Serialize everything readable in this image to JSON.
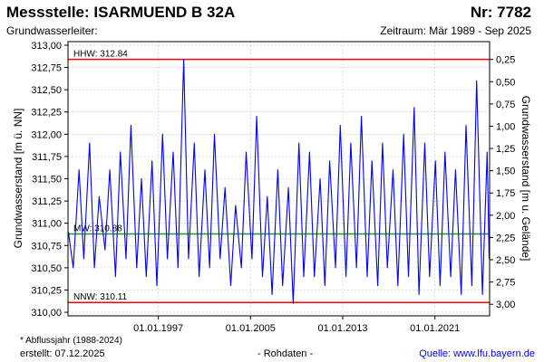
{
  "header": {
    "title": "Messstelle: ISARMUEND B 32A",
    "number": "Nr: 7782",
    "aquifer_label": "Grundwasserleiter:",
    "period": "Zeitraum: Mär 1989 - Sep 2025"
  },
  "footer": {
    "note": "* Abflussjahr (1988-2024)",
    "created": "erstellt:  07.12.2025",
    "data_type": "- Rohdaten -",
    "source": "Quelle:  www.lfu.bayern.de"
  },
  "colors": {
    "series": "#0000ff",
    "extreme_lines": "#ff0000",
    "mean_line": "#1a9e1a",
    "grid": "#c8c8c8",
    "source_text": "#0000ff"
  },
  "chart_data": {
    "type": "line",
    "ylabel": "Grundwasserstand [m ü. NN]",
    "ylabel_right": "Grundwasserstand [m u. Gelände]",
    "ylim": [
      309.96,
      313.04
    ],
    "yticks": [
      "310,00",
      "310,25",
      "310,50",
      "310,75",
      "311,00",
      "311,25",
      "311,50",
      "311,75",
      "312,00",
      "312,25",
      "312,50",
      "312,75",
      "313,00"
    ],
    "yticks_right": [
      "0,25",
      "0,50",
      "0,75",
      "1,00",
      "1,25",
      "1,50",
      "1,75",
      "2,00",
      "2,25",
      "2,50",
      "2,75",
      "3,00"
    ],
    "right_axis_zero_level": 313.09,
    "xlim": [
      "1989-03-01",
      "2025-09-30"
    ],
    "xticks": [
      {
        "date": "1997-01-01",
        "label": "01.01.1997"
      },
      {
        "date": "2005-01-01",
        "label": "01.01.2005"
      },
      {
        "date": "2013-01-01",
        "label": "01.01.2013"
      },
      {
        "date": "2021-01-01",
        "label": "01.01.2021"
      }
    ],
    "grid": true,
    "reference_lines": [
      {
        "label": "HHW: 312.84",
        "value": 312.84
      },
      {
        "label": "MW: 310.88",
        "value": 310.88
      },
      {
        "label": "NNW: 310.11",
        "value": 310.11
      }
    ],
    "series": [
      {
        "x": [
          "1989-03",
          "1989-08",
          "1990-02",
          "1990-07",
          "1991-01",
          "1991-06",
          "1991-11",
          "1992-05",
          "1992-10",
          "1993-04",
          "1993-09",
          "1994-03",
          "1994-08",
          "1995-02",
          "1995-07",
          "1995-12",
          "1996-06",
          "1996-11",
          "1997-05",
          "1997-10",
          "1998-04",
          "1998-09",
          "1999-03",
          "1999-08",
          "2000-02",
          "2000-07",
          "2001-01",
          "2001-06",
          "2001-11",
          "2002-05",
          "2002-10",
          "2003-04",
          "2003-09",
          "2004-03",
          "2004-08",
          "2005-02",
          "2005-07",
          "2006-01",
          "2006-06",
          "2006-11",
          "2007-05",
          "2007-10",
          "2008-04",
          "2008-09",
          "2009-03",
          "2009-08",
          "2010-02",
          "2010-07",
          "2011-01",
          "2011-06",
          "2011-11",
          "2012-05",
          "2012-10",
          "2013-04",
          "2013-09",
          "2014-03",
          "2014-08",
          "2015-02",
          "2015-07",
          "2016-01",
          "2016-06",
          "2016-11",
          "2017-05",
          "2017-10",
          "2018-04",
          "2018-09",
          "2019-03",
          "2019-08",
          "2020-02",
          "2020-07",
          "2021-01",
          "2021-06",
          "2021-11",
          "2022-05",
          "2022-10",
          "2023-04",
          "2023-09",
          "2024-03",
          "2024-08",
          "2025-02",
          "2025-07",
          "2025-09"
        ],
        "y": [
          310.9,
          310.5,
          311.6,
          310.6,
          311.9,
          310.5,
          311.3,
          310.7,
          311.6,
          310.4,
          311.8,
          310.6,
          312.1,
          310.5,
          311.5,
          310.4,
          311.7,
          310.3,
          312.0,
          310.6,
          311.8,
          310.5,
          312.84,
          310.6,
          311.9,
          310.4,
          311.6,
          310.5,
          312.0,
          310.6,
          311.4,
          310.3,
          311.2,
          310.5,
          311.8,
          310.6,
          312.2,
          310.4,
          311.3,
          310.2,
          311.6,
          310.3,
          311.4,
          310.1,
          311.9,
          310.4,
          311.8,
          310.4,
          311.5,
          310.3,
          311.7,
          310.5,
          312.1,
          310.4,
          311.9,
          310.5,
          312.2,
          310.4,
          311.7,
          310.3,
          311.9,
          310.5,
          311.6,
          310.3,
          312.0,
          310.4,
          312.3,
          310.2,
          311.9,
          310.4,
          311.7,
          310.3,
          311.8,
          310.4,
          311.6,
          310.2,
          312.1,
          310.3,
          312.6,
          310.2,
          311.8,
          310.6
        ]
      }
    ]
  }
}
